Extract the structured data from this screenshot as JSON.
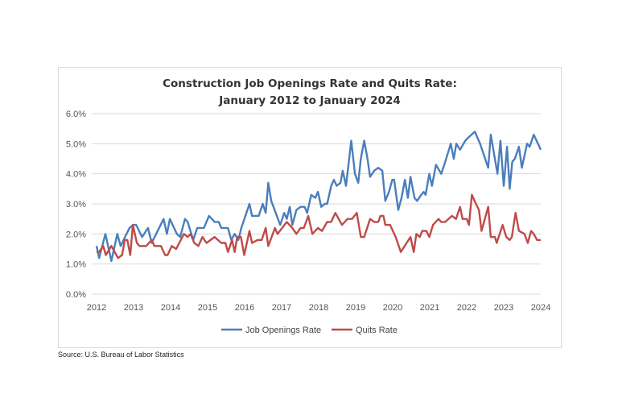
{
  "chart_data": {
    "type": "line",
    "title": [
      "Construction Job Openings Rate and Quits Rate:",
      "January 2012 to January 2024"
    ],
    "xlabel": "",
    "ylabel": "",
    "xlim": [
      2012,
      2024
    ],
    "ylim": [
      0,
      6
    ],
    "x_ticks": [
      "2012",
      "2013",
      "2014",
      "2015",
      "2016",
      "2017",
      "2018",
      "2019",
      "2020",
      "2021",
      "2022",
      "2023",
      "2024"
    ],
    "y_ticks": [
      "0.0%",
      "1.0%",
      "2.0%",
      "3.0%",
      "4.0%",
      "5.0%",
      "6.0%"
    ],
    "grid": "horizontal",
    "legend": "bottom",
    "series": [
      {
        "name": "Job Openings Rate",
        "color": "#4a7ebb",
        "points": [
          [
            2012.0,
            1.6
          ],
          [
            2012.07,
            1.2
          ],
          [
            2012.24,
            2.0
          ],
          [
            2012.4,
            1.1
          ],
          [
            2012.56,
            2.0
          ],
          [
            2012.65,
            1.6
          ],
          [
            2012.89,
            2.2
          ],
          [
            2012.99,
            2.3
          ],
          [
            2013.07,
            2.3
          ],
          [
            2013.23,
            1.9
          ],
          [
            2013.39,
            2.2
          ],
          [
            2013.49,
            1.7
          ],
          [
            2013.81,
            2.5
          ],
          [
            2013.9,
            2.0
          ],
          [
            2013.98,
            2.5
          ],
          [
            2014.17,
            2.0
          ],
          [
            2014.26,
            1.9
          ],
          [
            2014.39,
            2.5
          ],
          [
            2014.46,
            2.4
          ],
          [
            2014.61,
            1.8
          ],
          [
            2014.72,
            2.2
          ],
          [
            2014.9,
            2.2
          ],
          [
            2015.04,
            2.6
          ],
          [
            2015.19,
            2.4
          ],
          [
            2015.3,
            2.4
          ],
          [
            2015.37,
            2.2
          ],
          [
            2015.55,
            2.2
          ],
          [
            2015.64,
            1.8
          ],
          [
            2015.73,
            2.0
          ],
          [
            2015.83,
            1.8
          ],
          [
            2015.91,
            2.2
          ],
          [
            2016.13,
            3.0
          ],
          [
            2016.2,
            2.6
          ],
          [
            2016.38,
            2.6
          ],
          [
            2016.49,
            3.0
          ],
          [
            2016.57,
            2.7
          ],
          [
            2016.64,
            3.7
          ],
          [
            2016.72,
            3.1
          ],
          [
            2016.96,
            2.3
          ],
          [
            2017.07,
            2.7
          ],
          [
            2017.14,
            2.5
          ],
          [
            2017.22,
            2.9
          ],
          [
            2017.29,
            2.3
          ],
          [
            2017.4,
            2.8
          ],
          [
            2017.51,
            2.9
          ],
          [
            2017.62,
            2.9
          ],
          [
            2017.69,
            2.7
          ],
          [
            2017.8,
            3.3
          ],
          [
            2017.91,
            3.2
          ],
          [
            2017.98,
            3.4
          ],
          [
            2018.07,
            2.9
          ],
          [
            2018.16,
            3.0
          ],
          [
            2018.23,
            3.0
          ],
          [
            2018.34,
            3.6
          ],
          [
            2018.41,
            3.8
          ],
          [
            2018.49,
            3.6
          ],
          [
            2018.59,
            3.7
          ],
          [
            2018.65,
            4.1
          ],
          [
            2018.74,
            3.6
          ],
          [
            2018.88,
            5.1
          ],
          [
            2018.98,
            4.0
          ],
          [
            2019.07,
            3.7
          ],
          [
            2019.14,
            4.5
          ],
          [
            2019.23,
            5.1
          ],
          [
            2019.32,
            4.5
          ],
          [
            2019.39,
            3.9
          ],
          [
            2019.5,
            4.1
          ],
          [
            2019.61,
            4.2
          ],
          [
            2019.72,
            4.1
          ],
          [
            2019.8,
            3.1
          ],
          [
            2019.9,
            3.4
          ],
          [
            2019.99,
            3.8
          ],
          [
            2020.04,
            3.8
          ],
          [
            2020.15,
            2.8
          ],
          [
            2020.24,
            3.2
          ],
          [
            2020.33,
            3.8
          ],
          [
            2020.41,
            3.2
          ],
          [
            2020.48,
            3.9
          ],
          [
            2020.59,
            3.2
          ],
          [
            2020.66,
            3.1
          ],
          [
            2020.77,
            3.3
          ],
          [
            2020.84,
            3.4
          ],
          [
            2020.89,
            3.3
          ],
          [
            2020.99,
            4.0
          ],
          [
            2021.06,
            3.6
          ],
          [
            2021.17,
            4.3
          ],
          [
            2021.31,
            4.0
          ],
          [
            2021.42,
            4.4
          ],
          [
            2021.57,
            5.0
          ],
          [
            2021.65,
            4.5
          ],
          [
            2021.72,
            5.0
          ],
          [
            2021.82,
            4.8
          ],
          [
            2021.96,
            5.1
          ],
          [
            2022.04,
            5.2
          ],
          [
            2022.22,
            5.4
          ],
          [
            2022.36,
            5.0
          ],
          [
            2022.58,
            4.2
          ],
          [
            2022.65,
            5.3
          ],
          [
            2022.83,
            4.0
          ],
          [
            2022.91,
            5.1
          ],
          [
            2023.0,
            3.6
          ],
          [
            2023.09,
            4.9
          ],
          [
            2023.16,
            3.5
          ],
          [
            2023.23,
            4.4
          ],
          [
            2023.3,
            4.5
          ],
          [
            2023.41,
            4.9
          ],
          [
            2023.49,
            4.2
          ],
          [
            2023.63,
            5.0
          ],
          [
            2023.7,
            4.9
          ],
          [
            2023.81,
            5.3
          ],
          [
            2024.0,
            4.8
          ]
        ]
      },
      {
        "name": "Quits Rate",
        "color": "#be4b48",
        "points": [
          [
            2012.0,
            1.4
          ],
          [
            2012.07,
            1.4
          ],
          [
            2012.18,
            1.6
          ],
          [
            2012.25,
            1.3
          ],
          [
            2012.4,
            1.6
          ],
          [
            2012.58,
            1.2
          ],
          [
            2012.69,
            1.3
          ],
          [
            2012.76,
            1.8
          ],
          [
            2012.83,
            1.8
          ],
          [
            2012.91,
            1.3
          ],
          [
            2012.98,
            2.3
          ],
          [
            2013.09,
            1.7
          ],
          [
            2013.16,
            1.6
          ],
          [
            2013.34,
            1.6
          ],
          [
            2013.49,
            1.8
          ],
          [
            2013.56,
            1.6
          ],
          [
            2013.74,
            1.6
          ],
          [
            2013.85,
            1.3
          ],
          [
            2013.92,
            1.3
          ],
          [
            2014.03,
            1.6
          ],
          [
            2014.15,
            1.5
          ],
          [
            2014.36,
            2.0
          ],
          [
            2014.46,
            1.9
          ],
          [
            2014.54,
            2.0
          ],
          [
            2014.64,
            1.7
          ],
          [
            2014.75,
            1.6
          ],
          [
            2014.86,
            1.9
          ],
          [
            2014.97,
            1.7
          ],
          [
            2015.19,
            1.9
          ],
          [
            2015.37,
            1.7
          ],
          [
            2015.48,
            1.7
          ],
          [
            2015.55,
            1.4
          ],
          [
            2015.66,
            1.8
          ],
          [
            2015.73,
            1.4
          ],
          [
            2015.8,
            1.9
          ],
          [
            2015.9,
            1.9
          ],
          [
            2015.99,
            1.3
          ],
          [
            2016.13,
            2.1
          ],
          [
            2016.2,
            1.7
          ],
          [
            2016.35,
            1.8
          ],
          [
            2016.46,
            1.8
          ],
          [
            2016.57,
            2.2
          ],
          [
            2016.64,
            1.6
          ],
          [
            2016.82,
            2.2
          ],
          [
            2016.89,
            2.0
          ],
          [
            2017.14,
            2.4
          ],
          [
            2017.29,
            2.2
          ],
          [
            2017.4,
            2.0
          ],
          [
            2017.51,
            2.2
          ],
          [
            2017.6,
            2.2
          ],
          [
            2017.72,
            2.6
          ],
          [
            2017.83,
            2.0
          ],
          [
            2017.98,
            2.2
          ],
          [
            2018.09,
            2.1
          ],
          [
            2018.23,
            2.4
          ],
          [
            2018.34,
            2.4
          ],
          [
            2018.45,
            2.7
          ],
          [
            2018.63,
            2.3
          ],
          [
            2018.78,
            2.5
          ],
          [
            2018.9,
            2.5
          ],
          [
            2019.03,
            2.7
          ],
          [
            2019.14,
            1.9
          ],
          [
            2019.23,
            1.9
          ],
          [
            2019.39,
            2.5
          ],
          [
            2019.5,
            2.4
          ],
          [
            2019.61,
            2.4
          ],
          [
            2019.67,
            2.6
          ],
          [
            2019.75,
            2.6
          ],
          [
            2019.8,
            2.3
          ],
          [
            2019.93,
            2.3
          ],
          [
            2020.08,
            1.9
          ],
          [
            2020.22,
            1.4
          ],
          [
            2020.48,
            1.9
          ],
          [
            2020.57,
            1.4
          ],
          [
            2020.64,
            2.0
          ],
          [
            2020.73,
            1.9
          ],
          [
            2020.8,
            2.1
          ],
          [
            2020.91,
            2.1
          ],
          [
            2020.99,
            1.9
          ],
          [
            2021.09,
            2.3
          ],
          [
            2021.24,
            2.5
          ],
          [
            2021.31,
            2.4
          ],
          [
            2021.42,
            2.4
          ],
          [
            2021.6,
            2.6
          ],
          [
            2021.71,
            2.5
          ],
          [
            2021.82,
            2.9
          ],
          [
            2021.89,
            2.5
          ],
          [
            2022.0,
            2.5
          ],
          [
            2022.06,
            2.3
          ],
          [
            2022.14,
            3.3
          ],
          [
            2022.25,
            3.0
          ],
          [
            2022.33,
            2.8
          ],
          [
            2022.4,
            2.1
          ],
          [
            2022.58,
            2.9
          ],
          [
            2022.65,
            1.9
          ],
          [
            2022.76,
            1.9
          ],
          [
            2022.81,
            1.7
          ],
          [
            2022.97,
            2.3
          ],
          [
            2023.07,
            1.9
          ],
          [
            2023.16,
            1.8
          ],
          [
            2023.22,
            1.9
          ],
          [
            2023.32,
            2.7
          ],
          [
            2023.41,
            2.1
          ],
          [
            2023.56,
            2.0
          ],
          [
            2023.65,
            1.7
          ],
          [
            2023.74,
            2.1
          ],
          [
            2023.81,
            2.0
          ],
          [
            2023.9,
            1.8
          ],
          [
            2024.0,
            1.8
          ]
        ]
      }
    ]
  },
  "source": "Source: U.S. Bureau of Labor Statistics"
}
